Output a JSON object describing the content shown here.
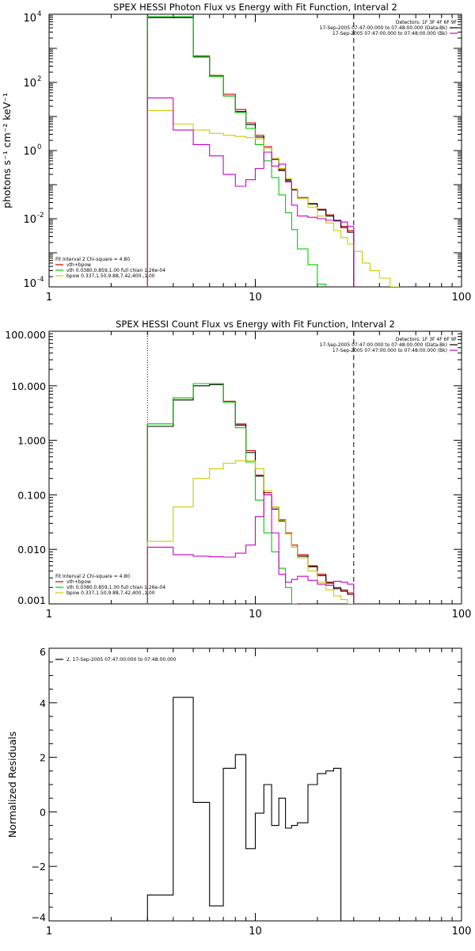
{
  "chart_data": [
    {
      "type": "line",
      "title": "SPEX HESSI Photon Flux vs Energy with Fit Function, Interval 2",
      "ylabel": "photons s⁻¹ cm⁻² keV⁻¹",
      "xlabel": "",
      "x_scale": "log",
      "y_scale": "log",
      "xlim": [
        1,
        100
      ],
      "ylim": [
        0.0001,
        10000
      ],
      "x_ticks": [
        {
          "v": 1,
          "label": "1"
        },
        {
          "v": 10,
          "label": "10"
        },
        {
          "v": 100,
          "label": "100"
        }
      ],
      "y_ticks": [
        {
          "v": 0.0001,
          "label": "10",
          "exp": "-4"
        },
        {
          "v": 0.01,
          "label": "10",
          "exp": "-2"
        },
        {
          "v": 1,
          "label": "10",
          "exp": "0"
        },
        {
          "v": 100,
          "label": "10",
          "exp": "2"
        },
        {
          "v": 10000,
          "label": "10",
          "exp": "4"
        }
      ],
      "vlines": [
        {
          "x": 3.0,
          "style": "dotted"
        },
        {
          "x": 30.0,
          "style": "dashed"
        }
      ],
      "legend_top_right": {
        "detectors": "Detectors: 1F 3F 4F 6F 9F",
        "rows": [
          {
            "label": "17-Sep-2005 07:47:00.000 to 07:48:00.000 (Data-Bk)",
            "color": "#000000"
          },
          {
            "label": "17-Sep-2005 07:47:00.000 to 07:48:00.000 (Bk)",
            "color": "#cc00cc"
          }
        ]
      },
      "legend_bottom_left": {
        "header": "Fit Interval 2   Chi-square = 4.80",
        "rows": [
          {
            "label": "vth+bpow",
            "color": "#cc0000"
          },
          {
            "label": "vth 0.0380,0.859,1.00  full chian 1.26e-04",
            "color": "#00cc00"
          },
          {
            "label": "bpow 0.337,1.50,9.88,7.42,400.,1.00",
            "color": "#cccc00"
          }
        ]
      },
      "edges": [
        3.0,
        4.0,
        5.0,
        6.0,
        7.0,
        8.0,
        9.0,
        10.0,
        11.0,
        12.0,
        13.0,
        14.0,
        15.0,
        16.0,
        18.0,
        20.0,
        22.0,
        24.0,
        26.0,
        28.0,
        30.0,
        33.0,
        36.0,
        40.0,
        45.0,
        50.0
      ],
      "series": [
        {
          "color": "#cc0000",
          "values": [
            8500,
            8500,
            600,
            160,
            45,
            16,
            6.5,
            2.8,
            1.3,
            0.6,
            0.28,
            0.14,
            0.075,
            0.042,
            0.028,
            0.019,
            0.013,
            0.009,
            0.006,
            0.0045,
            null,
            null,
            null,
            null,
            null
          ]
        },
        {
          "color": "#000000",
          "values": [
            8000,
            8000,
            560,
            150,
            40,
            14,
            5.8,
            2.5,
            1.2,
            0.55,
            0.26,
            0.13,
            0.07,
            0.04,
            0.027,
            0.018,
            0.012,
            0.009,
            0.0055,
            0.004,
            null,
            null,
            null,
            null,
            null
          ]
        },
        {
          "color": "#00cc00",
          "values": [
            8500,
            8500,
            580,
            150,
            40,
            13,
            4.5,
            1.5,
            0.5,
            0.16,
            0.05,
            0.015,
            0.0048,
            0.0013,
            0.00045,
            0.00012,
            5e-05,
            null,
            null,
            null,
            null,
            null,
            null,
            null,
            null
          ]
        },
        {
          "color": "#cccc00",
          "values": [
            15,
            6,
            4,
            3.2,
            2.8,
            2.6,
            2.4,
            2.2,
            1.2,
            0.6,
            0.3,
            0.15,
            0.075,
            0.04,
            0.022,
            0.012,
            0.0075,
            0.0045,
            0.0028,
            0.0018,
            0.0011,
            0.0005,
            0.0003,
            0.00018,
            0.0001
          ]
        },
        {
          "color": "#cc00cc",
          "values": [
            35,
            4,
            1.5,
            0.7,
            0.2,
            0.09,
            0.14,
            0.3,
            0.9,
            0.35,
            0.4,
            0.12,
            0.025,
            0.012,
            0.011,
            0.01,
            0.009,
            0.0085,
            0.008,
            0.006,
            null,
            null,
            null,
            null,
            null
          ]
        }
      ]
    },
    {
      "type": "line",
      "title": "SPEX HESSI Count Flux vs Energy with Fit Function, Interval 2",
      "xlabel": "",
      "x_scale": "log",
      "y_scale": "log",
      "xlim": [
        1,
        100
      ],
      "ylim": [
        0.001,
        100
      ],
      "x_ticks": [
        {
          "v": 1,
          "label": "1"
        },
        {
          "v": 10,
          "label": "10"
        },
        {
          "v": 100,
          "label": "100"
        }
      ],
      "y_ticks": [
        {
          "v": 0.001,
          "label": "0.001"
        },
        {
          "v": 0.01,
          "label": "0.010"
        },
        {
          "v": 0.1,
          "label": "0.100"
        },
        {
          "v": 1,
          "label": "1.000"
        },
        {
          "v": 10,
          "label": "10.000"
        },
        {
          "v": 100,
          "label": "100.000"
        }
      ],
      "vlines": [
        {
          "x": 3.0,
          "style": "dotted"
        },
        {
          "x": 30.0,
          "style": "dashed"
        }
      ],
      "legend_top_right": {
        "detectors": "Detectors: 1F 3F 4F 6F 9F",
        "rows": [
          {
            "label": "17-Sep-2005 07:47:00.000 to 07:48:00.000 (Data-Bk)",
            "color": "#000000"
          },
          {
            "label": "17-Sep-2005 07:47:00.000 to 07:48:00.000 (Bk)",
            "color": "#cc00cc"
          }
        ]
      },
      "legend_bottom_left": {
        "header": "Fit Interval 2   Chi-square = 4.80",
        "rows": [
          {
            "label": "vth+bpow",
            "color": "#cc0000"
          },
          {
            "label": "vth 0.0380,0.859,1.00  full chian 1.26e-04",
            "color": "#00cc00"
          },
          {
            "label": "bpow 0.337,1.50,9.88,7.42,400.,1.00",
            "color": "#cccc00"
          }
        ]
      },
      "edges": [
        3.0,
        4.0,
        5.0,
        6.0,
        7.0,
        8.0,
        9.0,
        10.0,
        11.0,
        12.0,
        13.0,
        14.0,
        15.0,
        16.0,
        18.0,
        20.0,
        22.0,
        24.0,
        26.0,
        28.0,
        30.0,
        33.0,
        36.0
      ],
      "series": [
        {
          "color": "#cc0000",
          "values": [
            2.0,
            6.0,
            11.0,
            11.0,
            5.2,
            2.0,
            0.65,
            0.23,
            0.11,
            0.06,
            0.035,
            0.02,
            0.012,
            0.008,
            0.005,
            0.0035,
            0.0025,
            0.002,
            0.0018,
            0.0016,
            null,
            null
          ]
        },
        {
          "color": "#000000",
          "values": [
            1.8,
            5.5,
            10.0,
            10.5,
            5.0,
            1.9,
            0.6,
            0.22,
            0.1,
            0.055,
            0.033,
            0.019,
            0.011,
            0.0075,
            0.0048,
            0.0033,
            0.0024,
            0.0019,
            0.0017,
            0.0015,
            null,
            null
          ]
        },
        {
          "color": "#00cc00",
          "values": [
            2.0,
            6.0,
            11.0,
            11.0,
            5.0,
            1.7,
            0.4,
            0.08,
            0.02,
            0.009,
            0.0045,
            0.002,
            0.001,
            null,
            null,
            null,
            null,
            null,
            null,
            null,
            null,
            null
          ]
        },
        {
          "color": "#cccc00",
          "values": [
            0.014,
            0.06,
            0.2,
            0.3,
            0.38,
            0.42,
            0.42,
            0.3,
            0.12,
            0.06,
            0.034,
            0.019,
            0.011,
            0.007,
            0.004,
            0.0025,
            0.0018,
            0.0014,
            0.0012,
            0.001,
            null,
            null
          ]
        },
        {
          "color": "#cc00cc",
          "values": [
            0.011,
            0.008,
            0.0075,
            0.0073,
            0.0072,
            0.0085,
            0.012,
            0.04,
            0.1,
            0.02,
            0.0035,
            0.0025,
            0.0028,
            0.0032,
            0.0027,
            0.0023,
            0.0022,
            0.0026,
            0.0025,
            0.0023,
            null,
            null
          ]
        }
      ]
    },
    {
      "type": "line",
      "title": "",
      "ylabel": "Normalized Residuals",
      "xlabel": "",
      "x_scale": "log",
      "y_scale": "linear",
      "xlim": [
        1,
        100
      ],
      "ylim": [
        -4,
        6
      ],
      "x_ticks": [
        {
          "v": 1,
          "label": "1"
        },
        {
          "v": 10,
          "label": "10"
        },
        {
          "v": 100,
          "label": "100"
        }
      ],
      "y_ticks": [
        {
          "v": -4,
          "label": "−4"
        },
        {
          "v": -2,
          "label": "−2"
        },
        {
          "v": 0,
          "label": "0"
        },
        {
          "v": 2,
          "label": "2"
        },
        {
          "v": 4,
          "label": "4"
        },
        {
          "v": 6,
          "label": "6"
        }
      ],
      "legend_top_left": {
        "rows": [
          {
            "label": "2. 17-Sep-2005 07:47:00.000 to 07:48:00.000",
            "color": "#000000"
          }
        ]
      },
      "edges": [
        3.0,
        4.0,
        5.0,
        6.0,
        7.0,
        8.0,
        9.0,
        10.0,
        11.0,
        12.0,
        13.0,
        14.0,
        15.0,
        16.0,
        18.0,
        20.0,
        22.0,
        24.0,
        26.0,
        28.0,
        30.0
      ],
      "series": [
        {
          "color": "#000000",
          "values": [
            -3.05,
            4.2,
            0.35,
            -3.45,
            1.6,
            2.1,
            -1.35,
            -0.05,
            1.0,
            -0.5,
            0.5,
            -0.6,
            -0.5,
            -0.4,
            1.0,
            1.4,
            1.5,
            1.6,
            null,
            null
          ]
        }
      ]
    }
  ]
}
